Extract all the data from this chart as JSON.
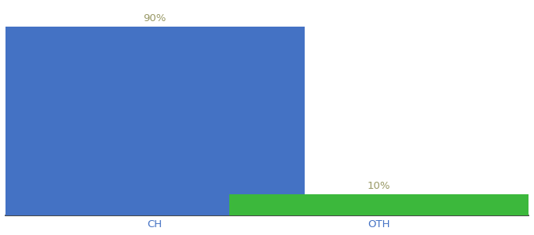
{
  "categories": [
    "CH",
    "OTH"
  ],
  "values": [
    90,
    10
  ],
  "bar_colors": [
    "#4472c4",
    "#3cb83c"
  ],
  "value_labels": [
    "90%",
    "10%"
  ],
  "background_color": "#ffffff",
  "bar_width": 0.6,
  "x_positions": [
    0.3,
    0.75
  ],
  "xlim": [
    0.0,
    1.05
  ],
  "ylim": [
    0,
    100
  ],
  "label_fontsize": 9.5,
  "tick_fontsize": 9.5,
  "label_color": "#999966",
  "tick_color": "#4472c4",
  "bottom_line_color": "#222222"
}
